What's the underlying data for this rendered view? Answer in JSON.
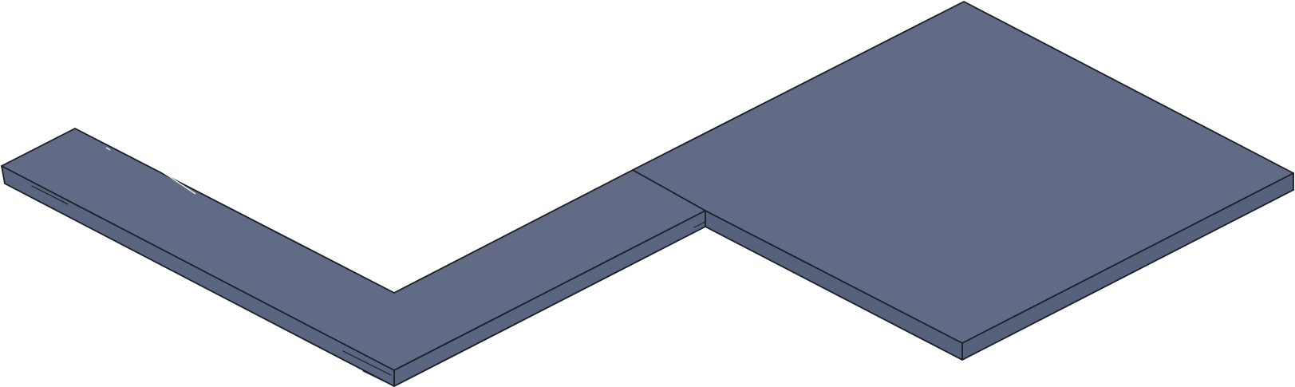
{
  "diagram": {
    "kind": "isometric-3d-slab",
    "shape": "L-shaped countertop with stepped square section",
    "colors": {
      "top_face": "#616b85",
      "front_face": "#5a6580",
      "side_face": "#56617c",
      "edge": "#1b1e27",
      "background": "#ffffff"
    }
  }
}
